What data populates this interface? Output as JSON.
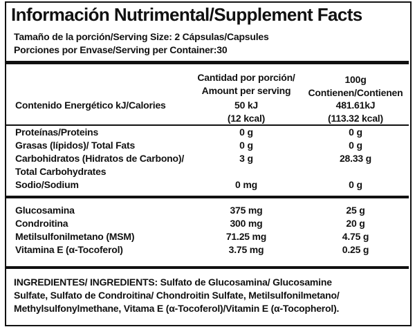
{
  "title": "Información Nutrimental/Supplement Facts",
  "serving_size": "Tamaño de la porción/Serving Size: 2 Cápsulas/Capsules",
  "servings": "Porciones por Envase/Serving per Container:30",
  "header": {
    "per_serving": [
      "Cantidad por porción/",
      "Amount per serving"
    ],
    "per_100g": [
      "100g",
      "Contienen/Contienen"
    ]
  },
  "nutrients": [
    {
      "label": [
        "Contenido Energético kJ/Calories"
      ],
      "per_serving": [
        "50 kJ",
        "(12 kcal)"
      ],
      "per_100g": [
        "481.61kJ",
        "(113.32 kcal)"
      ]
    },
    {
      "label": [
        "Proteínas/Proteins"
      ],
      "per_serving": [
        "0 g"
      ],
      "per_100g": [
        "0 g"
      ]
    },
    {
      "label": [
        "Grasas (lípidos)/ Total Fats"
      ],
      "per_serving": [
        "0 g"
      ],
      "per_100g": [
        "0 g"
      ]
    },
    {
      "label": [
        "Carbohidratos (Hidratos de Carbono)/",
        "Total Carbohydrates"
      ],
      "per_serving": [
        "3 g"
      ],
      "per_100g": [
        "28.33 g"
      ]
    },
    {
      "label": [
        "Sodio/Sodium"
      ],
      "per_serving": [
        "0 mg"
      ],
      "per_100g": [
        "0 g"
      ]
    }
  ],
  "actives": [
    {
      "label": [
        "Glucosamina"
      ],
      "per_serving": [
        "375 mg"
      ],
      "per_100g": [
        "25 g"
      ]
    },
    {
      "label": [
        "Condroitina"
      ],
      "per_serving": [
        "300 mg"
      ],
      "per_100g": [
        "20 g"
      ]
    },
    {
      "label": [
        "Metilsulfonilmetano (MSM)"
      ],
      "per_serving": [
        "71.25 mg"
      ],
      "per_100g": [
        "4.75 g"
      ]
    },
    {
      "label": [
        "Vitamina E (α-Tocoferol)"
      ],
      "per_serving": [
        "3.75 mg"
      ],
      "per_100g": [
        "0.25 g"
      ]
    }
  ],
  "ingredients": [
    "INGREDIENTES/ INGREDIENTS: Sulfato de Glucosamina/ Glucosamine",
    "Sulfate, Sulfato de Condroitina/ Chondroitin Sulfate, Metilsulfonilmetano/",
    "Methylsulfonylmethane, Vitama E (α-Tocoferol)/Vitamin E (α-Tocopherol)."
  ]
}
